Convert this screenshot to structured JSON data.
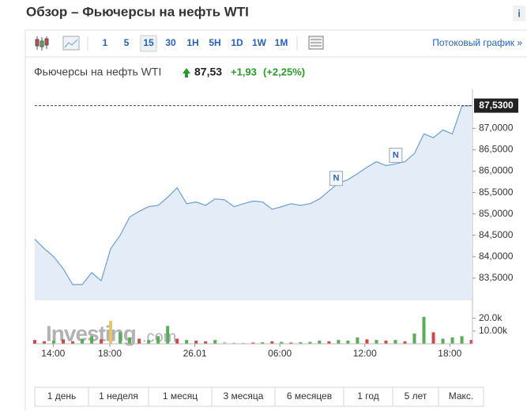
{
  "header": {
    "title": "Обзор – Фьючерсы на нефть WTI",
    "info": "i"
  },
  "toolbar": {
    "intervals": [
      "1",
      "5",
      "15",
      "30",
      "1H",
      "5H",
      "1D",
      "1W",
      "1M"
    ],
    "selected": 2,
    "stream": "Потоковый график »"
  },
  "quote": {
    "name": "Фьючерсы на нефть WTI",
    "price": "87,53",
    "change": "+1,93",
    "change_pct": "(+2,25%)"
  },
  "chart_data": {
    "type": "line",
    "color": "#6b9fd2",
    "fill": "#e4edf7",
    "x": [
      12.7,
      13.37,
      14.04,
      14.71,
      15.38,
      16.05,
      16.72,
      17.39,
      18.06,
      18.73,
      19.4,
      20.07,
      20.74,
      21.41,
      22.08,
      22.75,
      23.42,
      24.09,
      24.76,
      25.43,
      26.1,
      26.77,
      27.44,
      28.11,
      28.78,
      29.45,
      30.12,
      30.79,
      31.46,
      32.13,
      32.8,
      33.47,
      34.14,
      34.81,
      35.48,
      36.15,
      36.82,
      37.49,
      38.16,
      38.83,
      39.5,
      40.17,
      40.84,
      41.51,
      42.18,
      42.85,
      43.52
    ],
    "values": [
      84.41,
      84.19,
      84.0,
      83.72,
      83.35,
      83.35,
      83.63,
      83.44,
      84.19,
      84.5,
      84.93,
      85.06,
      85.17,
      85.2,
      85.39,
      85.61,
      85.24,
      85.28,
      85.2,
      85.35,
      85.33,
      85.17,
      85.24,
      85.3,
      85.28,
      85.11,
      85.17,
      85.24,
      85.2,
      85.24,
      85.35,
      85.54,
      85.72,
      85.8,
      85.94,
      86.09,
      86.22,
      86.13,
      86.17,
      86.22,
      86.41,
      86.87,
      86.78,
      86.96,
      86.87,
      87.52,
      87.53
    ],
    "xlim": [
      12.7,
      43.6
    ],
    "ylim": [
      83.0,
      87.8
    ],
    "xticks": [
      {
        "value": 14,
        "label": "14:00"
      },
      {
        "value": 18,
        "label": "18:00"
      },
      {
        "value": 24,
        "label": "26.01"
      },
      {
        "value": 30,
        "label": "06:00"
      },
      {
        "value": 36,
        "label": "12:00"
      },
      {
        "value": 42,
        "label": "18:00"
      }
    ],
    "yticks": [
      {
        "value": 83.5,
        "label": "83,5000"
      },
      {
        "value": 84,
        "label": "84,0000"
      },
      {
        "value": 84.5,
        "label": "84,5000"
      },
      {
        "value": 85,
        "label": "85,0000"
      },
      {
        "value": 85.5,
        "label": "85,5000"
      },
      {
        "value": 86,
        "label": "86,0000"
      },
      {
        "value": 86.5,
        "label": "86,5000"
      },
      {
        "value": 87,
        "label": "87,0000"
      }
    ],
    "price_line": {
      "value": 87.53,
      "label": "87,5300"
    },
    "annotations": [
      {
        "x": 33.98,
        "y": 85.83,
        "text": "N"
      },
      {
        "x": 38.18,
        "y": 86.37,
        "text": "N"
      }
    ],
    "watermark": [
      "Investing",
      ".com"
    ],
    "volume": {
      "ylim": [
        0,
        34000
      ],
      "yticks": [
        {
          "value": 20000,
          "label": "20.0k"
        },
        {
          "value": 10000,
          "label": "10.00k"
        }
      ],
      "values": [
        3000,
        2000,
        2500,
        3500,
        2000,
        4000,
        6000,
        3500,
        18000,
        9000,
        5000,
        4000,
        3000,
        6000,
        14000,
        4000,
        3000,
        2500,
        2000,
        3000,
        1500,
        1000,
        800,
        1000,
        1200,
        2000,
        1500,
        1000,
        1200,
        1500,
        2500,
        2000,
        3000,
        2500,
        5000,
        3500,
        3000,
        2500,
        3000,
        2000,
        8000,
        21000,
        9000,
        4000,
        5000,
        6000,
        3000
      ],
      "colors": [
        "#c94a4a",
        "#c94a4a",
        "#5aab5a",
        "#c94a4a",
        "#c94a4a",
        "#5aab5a",
        "#5aab5a",
        "#c94a4a",
        "#e3c86a",
        "#5aab5a",
        "#5aab5a",
        "#c94a4a",
        "#5aab5a",
        "#5aab5a",
        "#5aab5a",
        "#c94a4a",
        "#5aab5a",
        "#c94a4a",
        "#c94a4a",
        "#5aab5a",
        "#c8c8c8",
        "#c8c8c8",
        "#c8c8c8",
        "#c94a4a",
        "#5aab5a",
        "#c94a4a",
        "#5aab5a",
        "#c94a4a",
        "#5aab5a",
        "#5aab5a",
        "#5aab5a",
        "#c94a4a",
        "#5aab5a",
        "#5aab5a",
        "#5aab5a",
        "#c94a4a",
        "#5aab5a",
        "#c94a4a",
        "#5aab5a",
        "#c94a4a",
        "#5aab5a",
        "#5aab5a",
        "#c94a4a",
        "#5aab5a",
        "#5aab5a",
        "#5aab5a",
        "#c94a4a"
      ]
    }
  },
  "periods": [
    "1 день",
    "1 неделя",
    "1 месяц",
    "3 месяца",
    "6 месяцев",
    "1 год",
    "5 лет",
    "Макс."
  ]
}
